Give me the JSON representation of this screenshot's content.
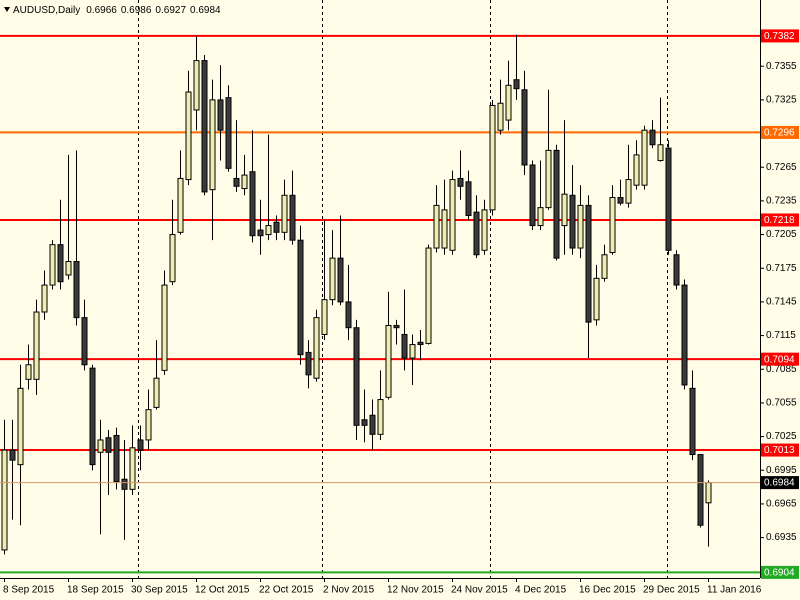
{
  "chart_data": {
    "type": "candlestick",
    "title": "AUDUSD,Daily",
    "categories": [
      "8 Sep 2015",
      null,
      null,
      null,
      null,
      null,
      null,
      null,
      "18 Sep 2015",
      null,
      null,
      null,
      null,
      null,
      null,
      null,
      "30 Sep 2015",
      null,
      null,
      null,
      null,
      null,
      null,
      null,
      "12 Oct 2015",
      null,
      null,
      null,
      null,
      null,
      null,
      null,
      "22 Oct 2015",
      null,
      null,
      null,
      null,
      null,
      null,
      null,
      "2 Nov 2015",
      null,
      null,
      null,
      null,
      null,
      null,
      null,
      "12 Nov 2015",
      null,
      null,
      null,
      null,
      null,
      null,
      null,
      "24 Nov 2015",
      null,
      null,
      null,
      null,
      null,
      null,
      null,
      "4 Dec 2015",
      null,
      null,
      null,
      null,
      null,
      null,
      null,
      "16 Dec 2015",
      null,
      null,
      null,
      null,
      null,
      null,
      null,
      "29 Dec 2015",
      null,
      null,
      null,
      null,
      null,
      null,
      null,
      "11 Jan 2016"
    ],
    "open": [
      0.6924,
      0.7013,
      0.7,
      0.7076,
      0.7076,
      0.7136,
      0.716,
      0.7196,
      0.7169,
      0.7181,
      0.7131,
      0.7086,
      0.7011,
      0.7024,
      0.7026,
      0.6987,
      0.6978,
      0.7022,
      0.7022,
      0.7051,
      0.7084,
      0.7163,
      0.7207,
      0.7254,
      0.7316,
      0.736,
      0.7245,
      0.7325,
      0.7327,
      0.7255,
      0.7246,
      0.7261,
      0.7209,
      0.7205,
      0.7216,
      0.7207,
      0.724,
      0.72,
      0.71,
      0.7077,
      0.7116,
      0.7147,
      0.7184,
      0.7145,
      0.7122,
      0.704,
      0.7044,
      0.7027,
      0.706,
      0.7124,
      0.7116,
      0.7095,
      0.7109,
      0.7108,
      0.7193,
      0.7193,
      0.7191,
      0.7255,
      0.7252,
      0.7225,
      0.7191,
      0.7227,
      0.7298,
      0.7307,
      0.7343,
      0.7334,
      0.7267,
      0.7213,
      0.7229,
      0.728,
      0.7213,
      0.724,
      0.7193,
      0.7231,
      0.7129,
      0.7166,
      0.7189,
      0.7238,
      0.7233,
      0.7249,
      0.7249,
      0.7298,
      0.7271,
      0.7282,
      0.7187,
      0.716,
      0.7068,
      0.7009,
      0.6966
    ],
    "high": [
      0.704,
      0.704,
      0.7089,
      0.7107,
      0.7147,
      0.7173,
      0.72,
      0.7236,
      0.7276,
      0.728,
      0.7147,
      0.7089,
      0.704,
      0.7031,
      0.7033,
      0.7022,
      0.7035,
      0.7035,
      0.7067,
      0.7111,
      0.7173,
      0.7236,
      0.728,
      0.7351,
      0.7382,
      0.7365,
      0.7343,
      0.7356,
      0.7338,
      0.7307,
      0.7276,
      0.7298,
      0.7236,
      0.7294,
      0.7222,
      0.7254,
      0.7262,
      0.7213,
      0.7111,
      0.7138,
      0.7218,
      0.7209,
      0.7222,
      0.7178,
      0.7129,
      0.7067,
      0.7058,
      0.7084,
      0.7154,
      0.7129,
      0.7156,
      0.7116,
      0.712,
      0.7196,
      0.7249,
      0.7254,
      0.7262,
      0.728,
      0.7262,
      0.724,
      0.7236,
      0.7325,
      0.7343,
      0.736,
      0.7383,
      0.7351,
      0.7271,
      0.7271,
      0.7334,
      0.7285,
      0.7307,
      0.7267,
      0.7249,
      0.724,
      0.7178,
      0.7196,
      0.7249,
      0.7254,
      0.7285,
      0.7289,
      0.7302,
      0.7307,
      0.7327,
      0.7289,
      0.7191,
      0.7165,
      0.7084,
      0.7009,
      0.6986
    ],
    "low": [
      0.692,
      0.6951,
      0.6946,
      0.7067,
      0.7062,
      0.7129,
      0.7156,
      0.7156,
      0.7165,
      0.7124,
      0.7084,
      0.6995,
      0.6938,
      0.6973,
      0.6978,
      0.6933,
      0.6973,
      0.6995,
      0.7013,
      0.7049,
      0.708,
      0.716,
      0.7205,
      0.7249,
      0.7298,
      0.724,
      0.72,
      0.7271,
      0.7261,
      0.7243,
      0.724,
      0.7198,
      0.7187,
      0.72,
      0.72,
      0.72,
      0.7196,
      0.7089,
      0.7068,
      0.7074,
      0.7111,
      0.7142,
      0.7142,
      0.7111,
      0.7022,
      0.702,
      0.7013,
      0.7022,
      0.7058,
      0.7107,
      0.7084,
      0.7071,
      0.7093,
      0.7107,
      0.7189,
      0.7187,
      0.7187,
      0.7236,
      0.7218,
      0.7184,
      0.7187,
      0.7222,
      0.7294,
      0.7298,
      0.7325,
      0.7258,
      0.7209,
      0.7209,
      0.7227,
      0.7182,
      0.7187,
      0.7187,
      0.7184,
      0.7095,
      0.7124,
      0.7163,
      0.7187,
      0.7231,
      0.7229,
      0.7245,
      0.7245,
      0.7282,
      0.727,
      0.7187,
      0.7156,
      0.7067,
      0.7004,
      0.6944,
      0.6927
    ],
    "close": [
      0.7013,
      0.7004,
      0.7068,
      0.7089,
      0.7136,
      0.716,
      0.7196,
      0.7163,
      0.7181,
      0.7131,
      0.7089,
      0.7,
      0.7022,
      0.7011,
      0.6985,
      0.6978,
      0.7015,
      0.7013,
      0.7049,
      0.7077,
      0.716,
      0.7205,
      0.7255,
      0.7332,
      0.736,
      0.7243,
      0.7325,
      0.7298,
      0.7264,
      0.7248,
      0.7258,
      0.7204,
      0.7204,
      0.7213,
      0.7207,
      0.724,
      0.72,
      0.7098,
      0.708,
      0.7131,
      0.7147,
      0.7184,
      0.7145,
      0.7122,
      0.7035,
      0.7035,
      0.7027,
      0.7058,
      0.7124,
      0.7122,
      0.7095,
      0.7107,
      0.7107,
      0.7193,
      0.7231,
      0.7227,
      0.7254,
      0.7248,
      0.7222,
      0.7187,
      0.7227,
      0.732,
      0.7322,
      0.7338,
      0.7335,
      0.7267,
      0.7213,
      0.7229,
      0.728,
      0.7184,
      0.7241,
      0.7193,
      0.7231,
      0.7127,
      0.7166,
      0.7187,
      0.7238,
      0.7233,
      0.7254,
      0.7276,
      0.7298,
      0.7285,
      0.7285,
      0.7191,
      0.716,
      0.7071,
      0.7009,
      0.6946,
      0.6984
    ],
    "bull_color": "#eeeeb0",
    "bear_color": "#3a3a3a",
    "outline_color": "#000000",
    "current_price_color": "#d89868",
    "ylim": [
      0.6899,
      0.7414
    ],
    "yticks": [
      0.7355,
      0.7325,
      0.7265,
      0.7235,
      0.7205,
      0.7175,
      0.7145,
      0.7115,
      0.7085,
      0.7055,
      0.7025,
      0.6995,
      0.6965,
      0.6935
    ],
    "levels": [
      {
        "value": 0.7382,
        "color": "#ff0000"
      },
      {
        "value": 0.7296,
        "color": "#ff6a00"
      },
      {
        "value": 0.7218,
        "color": "#ff0000"
      },
      {
        "value": 0.7094,
        "color": "#ff0000"
      },
      {
        "value": 0.7013,
        "color": "#ff0000"
      },
      {
        "value": 0.6904,
        "color": "#22aa22"
      }
    ]
  }
}
